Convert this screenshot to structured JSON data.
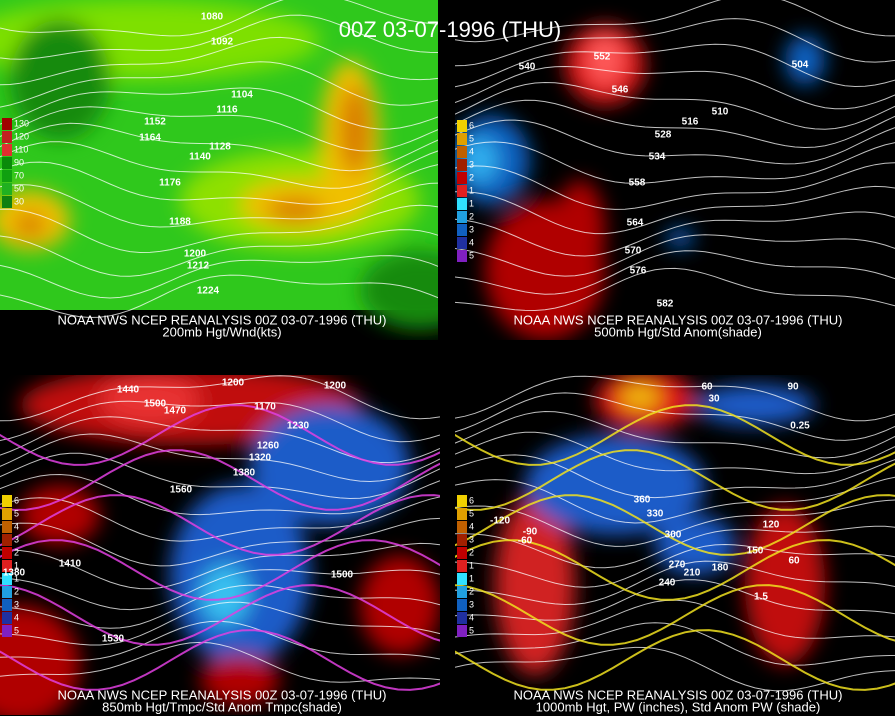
{
  "title": "00Z 03-07-1996 (THU)",
  "panels": [
    {
      "caption": "NOAA NWS NCEP REANALYSIS 00Z 03-07-1996 (THU)",
      "subtitle": "200mb Hgt/Wnd(kts)",
      "legend": [
        "130",
        "120",
        "110",
        "90",
        "70",
        "50",
        "30"
      ],
      "contour_labels": [
        "1080",
        "1092",
        "1104",
        "1116",
        "1152",
        "1164",
        "1128",
        "1140",
        "1176",
        "1188",
        "1200",
        "1212",
        "1224"
      ]
    },
    {
      "caption": "NOAA NWS NCEP REANALYSIS 00Z 03-07-1996 (THU)",
      "subtitle": "500mb Hgt/Std Anom(shade)",
      "legend": [
        "6",
        "5",
        "4",
        "3",
        "2",
        "1",
        "1",
        "2",
        "3",
        "4",
        "5"
      ],
      "contour_labels": [
        "540",
        "552",
        "546",
        "528",
        "516",
        "510",
        "504",
        "534",
        "558",
        "564",
        "570",
        "576",
        "582"
      ]
    },
    {
      "caption": "NOAA NWS NCEP REANALYSIS 00Z 03-07-1996 (THU)",
      "subtitle": "850mb Hgt/Tmpc/Std Anom Tmpc(shade)",
      "legend": [
        "6",
        "5",
        "4",
        "3",
        "2",
        "1",
        "1",
        "2",
        "3",
        "4",
        "5"
      ],
      "contour_labels": [
        "1200",
        "1440",
        "1500",
        "1470",
        "1170",
        "1200",
        "1230",
        "1260",
        "1320",
        "1380",
        "1560",
        "1410",
        "1500",
        "1530",
        "1380"
      ]
    },
    {
      "caption": "NOAA NWS NCEP REANALYSIS 00Z 03-07-1996 (THU)",
      "subtitle": "1000mb Hgt, PW (inches), Std Anom PW (shade)",
      "legend": [
        "6",
        "5",
        "4",
        "3",
        "2",
        "1",
        "1",
        "2",
        "3",
        "4",
        "5"
      ],
      "contour_labels": [
        "60",
        "90",
        "30",
        "0.25",
        "360",
        "330",
        "300",
        "270",
        "240",
        "210",
        "180",
        "150",
        "120",
        "-60",
        "-90",
        "-120",
        "1.5",
        "60"
      ]
    }
  ]
}
